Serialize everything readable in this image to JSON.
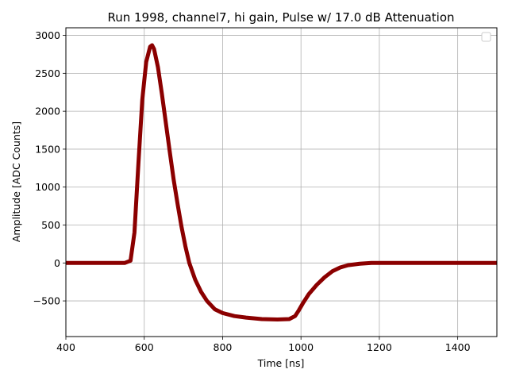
{
  "chart_data": {
    "type": "line",
    "title": "Run 1998, channel7, hi gain, Pulse w/ 17.0 dB Attenuation",
    "xlabel": "Time [ns]",
    "ylabel": "Amplitude [ADC Counts]",
    "xlim": [
      400,
      1500
    ],
    "ylim": [
      -970,
      3100
    ],
    "x_ticks": [
      400,
      600,
      800,
      1000,
      1200,
      1400
    ],
    "y_ticks": [
      -500,
      0,
      500,
      1000,
      1500,
      2000,
      2500,
      3000
    ],
    "x_tick_labels": [
      "400",
      "600",
      "800",
      "1000",
      "1200",
      "1400"
    ],
    "y_tick_labels": [
      "−500",
      "0",
      "500",
      "1000",
      "1500",
      "2000",
      "2500",
      "3000"
    ],
    "grid": true,
    "legend": "upper right (empty)",
    "colors": {
      "trace": "#8b0000",
      "grid": "#b0b0b0"
    },
    "series": [
      {
        "x": [
          400,
          450,
          500,
          550,
          565,
          575,
          585,
          595,
          605,
          615,
          620,
          625,
          635,
          645,
          655,
          665,
          675,
          685,
          695,
          705,
          715,
          730,
          745,
          760,
          780,
          800,
          830,
          860,
          900,
          940,
          970,
          985,
          995,
          1005,
          1020,
          1040,
          1060,
          1080,
          1100,
          1120,
          1150,
          1180,
          1220,
          1300,
          1400,
          1500
        ],
        "y": [
          0,
          0,
          0,
          0,
          30,
          400,
          1300,
          2150,
          2650,
          2850,
          2870,
          2820,
          2580,
          2230,
          1850,
          1470,
          1100,
          780,
          480,
          220,
          0,
          -220,
          -380,
          -500,
          -610,
          -660,
          -700,
          -720,
          -740,
          -745,
          -740,
          -700,
          -620,
          -530,
          -410,
          -290,
          -190,
          -110,
          -60,
          -30,
          -10,
          0,
          0,
          0,
          0,
          0
        ]
      }
    ]
  }
}
